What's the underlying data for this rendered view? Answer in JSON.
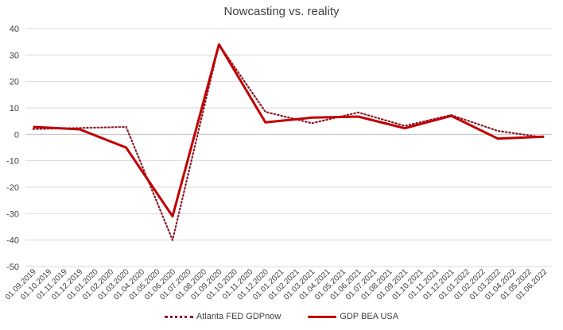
{
  "chart_data": {
    "type": "line",
    "title": "Nowcasting vs. reality",
    "xlabel": "",
    "ylabel": "",
    "ylim": [
      -50,
      40
    ],
    "yticks": [
      40,
      30,
      20,
      10,
      0,
      -10,
      -20,
      -30,
      -40,
      -50
    ],
    "grid": true,
    "legend_position": "bottom",
    "categories": [
      "01.09.2019",
      "01.10.2019",
      "01.11.2019",
      "01.12.2019",
      "01.01.2020",
      "01.02.2020",
      "01.03.2020",
      "01.04.2020",
      "01.05.2020",
      "01.06.2020",
      "01.07.2020",
      "01.08.2020",
      "01.09.2020",
      "01.10.2020",
      "01.11.2020",
      "01.12.2020",
      "01.01.2021",
      "01.02.2021",
      "01.03.2021",
      "01.04.2021",
      "01.05.2021",
      "01.06.2021",
      "01.07.2021",
      "01.08.2021",
      "01.09.2021",
      "01.10.2021",
      "01.11.2021",
      "01.12.2021",
      "01.01.2022",
      "01.02.2022",
      "01.03.2022",
      "01.04.2022",
      "01.05.2022",
      "01.06.2022"
    ],
    "series": [
      {
        "name": "Atlanta FED GDPnow",
        "color": "#8b1a2b",
        "style": "dotted",
        "points": [
          {
            "x": "01.09.2019",
            "y": 2
          },
          {
            "x": "01.03.2020",
            "y": 2.8
          },
          {
            "x": "01.06.2020",
            "y": -40
          },
          {
            "x": "01.09.2020",
            "y": 34
          },
          {
            "x": "01.12.2020",
            "y": 8.5
          },
          {
            "x": "01.03.2021",
            "y": 4.2
          },
          {
            "x": "01.06.2021",
            "y": 8.3
          },
          {
            "x": "01.09.2021",
            "y": 3.2
          },
          {
            "x": "01.12.2021",
            "y": 7.3
          },
          {
            "x": "01.03.2022",
            "y": 1.3
          },
          {
            "x": "01.06.2022",
            "y": -1.2
          }
        ]
      },
      {
        "name": "GDP BEA USA",
        "color": "#c00000",
        "style": "solid",
        "points": [
          {
            "x": "01.09.2019",
            "y": 2.8
          },
          {
            "x": "01.12.2019",
            "y": 1.9
          },
          {
            "x": "01.03.2020",
            "y": -5
          },
          {
            "x": "01.06.2020",
            "y": -31
          },
          {
            "x": "01.09.2020",
            "y": 34
          },
          {
            "x": "01.12.2020",
            "y": 4.5
          },
          {
            "x": "01.03.2021",
            "y": 6.3
          },
          {
            "x": "01.06.2021",
            "y": 6.7
          },
          {
            "x": "01.09.2021",
            "y": 2.3
          },
          {
            "x": "01.12.2021",
            "y": 7
          },
          {
            "x": "01.03.2022",
            "y": -1.6
          },
          {
            "x": "01.06.2022",
            "y": -0.9
          }
        ]
      }
    ]
  }
}
